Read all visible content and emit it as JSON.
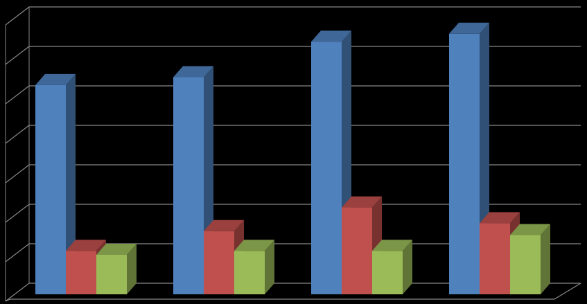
{
  "chart_data": {
    "type": "bar3d",
    "categories": [
      null,
      null,
      null,
      null
    ],
    "series": [
      {
        "color": "#4f81bd",
        "values": [
          5.3,
          5.5,
          6.4,
          6.6
        ]
      },
      {
        "color": "#c0504d",
        "values": [
          1.1,
          1.6,
          2.2,
          1.8
        ]
      },
      {
        "color": "#9bbb59",
        "values": [
          1.0,
          1.1,
          1.1,
          1.5
        ]
      }
    ],
    "ylim": [
      0,
      7
    ],
    "yticks": [
      0,
      1,
      2,
      3,
      4,
      5,
      6,
      7
    ],
    "grid": true
  }
}
